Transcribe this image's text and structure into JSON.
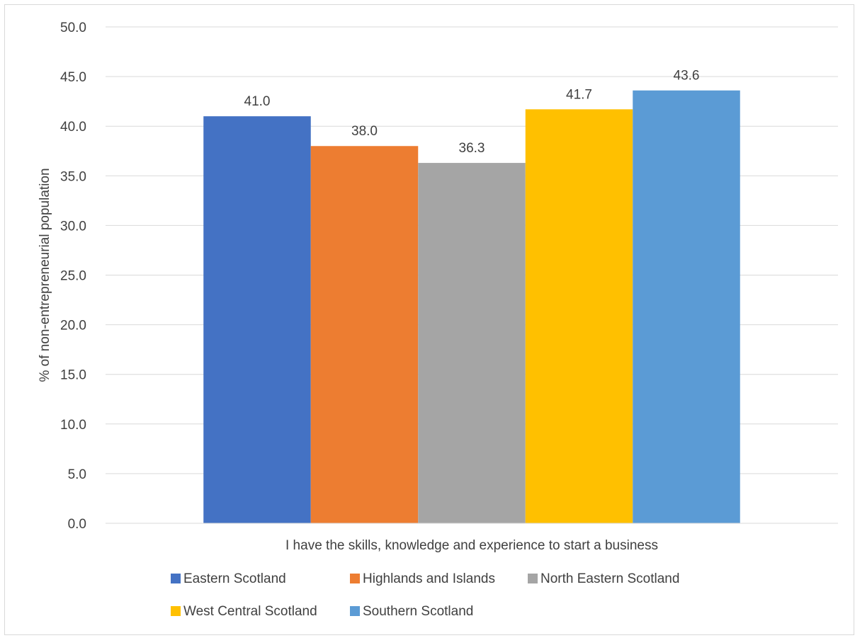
{
  "chart_data": {
    "type": "bar",
    "title": "",
    "xlabel": "I have the skills, knowledge and experience to start a business",
    "ylabel": "% of non-entrepreneurial population",
    "categories": [
      "I have the skills, knowledge and experience to start a business"
    ],
    "series": [
      {
        "name": "Eastern Scotland",
        "values": [
          41.0
        ],
        "color": "#4472C4"
      },
      {
        "name": "Highlands and Islands",
        "values": [
          38.0
        ],
        "color": "#ED7D31"
      },
      {
        "name": "North Eastern Scotland",
        "values": [
          36.3
        ],
        "color": "#A5A5A5"
      },
      {
        "name": "West Central Scotland",
        "values": [
          41.7
        ],
        "color": "#FFC000"
      },
      {
        "name": "Southern Scotland",
        "values": [
          43.6
        ],
        "color": "#5B9BD5"
      }
    ],
    "ylim": [
      0,
      50
    ],
    "yticks": [
      0,
      5,
      10,
      15,
      20,
      25,
      30,
      35,
      40,
      45,
      50
    ],
    "grid": true,
    "legend_position": "bottom",
    "data_labels": true
  }
}
